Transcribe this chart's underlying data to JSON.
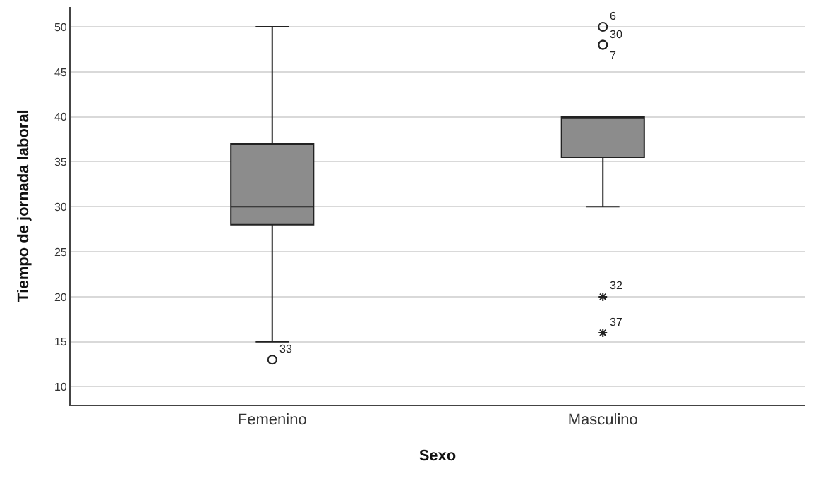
{
  "chart_data": {
    "type": "box",
    "xlabel": "Sexo",
    "ylabel": "Tiempo de jornada laboral",
    "categories": [
      "Femenino",
      "Masculino"
    ],
    "boxes": [
      {
        "low": 15,
        "q1": 28,
        "median": 30,
        "q3": 37,
        "high": 50,
        "outliers": [
          13
        ]
      },
      {
        "low": 30,
        "q1": 35.5,
        "median": 40,
        "q3": 40,
        "high": 40,
        "outliers": [
          50,
          48,
          48,
          20,
          16
        ]
      }
    ],
    "color": "#8c8c8c",
    "ylim": [
      8,
      52.2
    ],
    "yticks": [
      10,
      15,
      20,
      25,
      30,
      35,
      40,
      45,
      50
    ],
    "grid": "y",
    "annotations": [
      "33",
      "6",
      "30",
      "7",
      "32",
      "37"
    ]
  }
}
